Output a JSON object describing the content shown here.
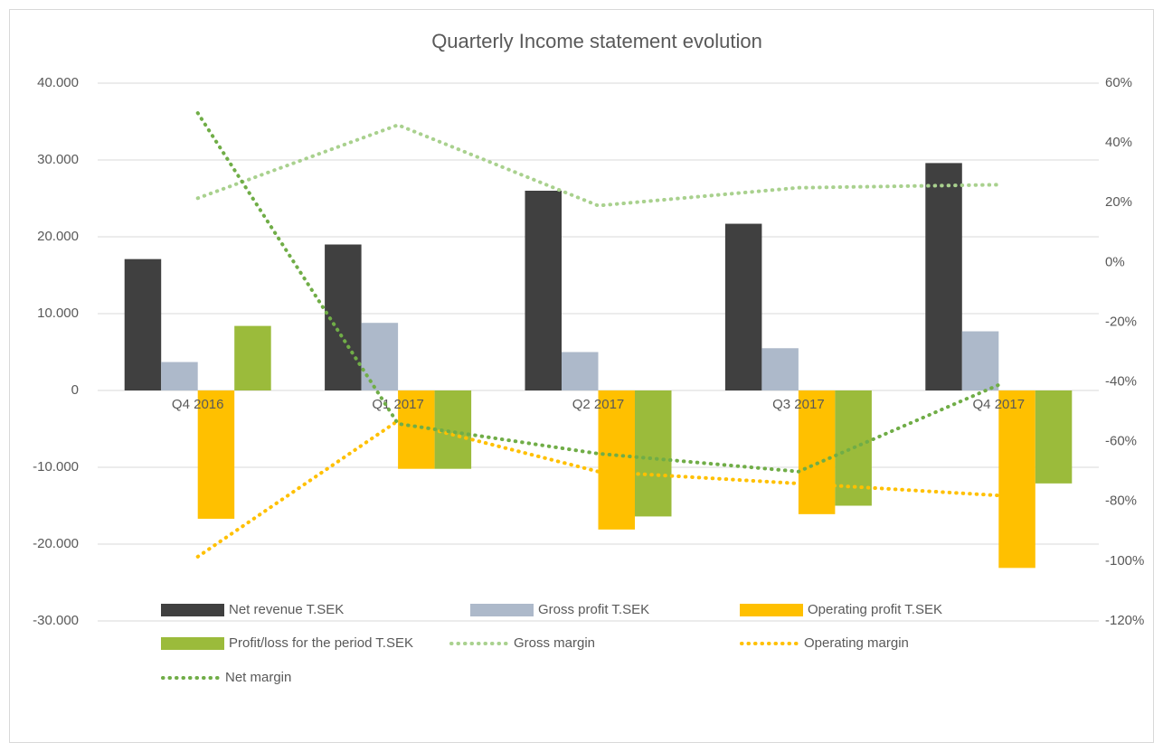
{
  "chart_data": {
    "type": "bar",
    "title": "Quarterly Income statement evolution",
    "categories": [
      "Q4 2016",
      "Q1 2017",
      "Q2 2017",
      "Q3 2017",
      "Q4 2017"
    ],
    "series": [
      {
        "name": "Net revenue T.SEK",
        "color": "#404040",
        "values": [
          17100,
          19000,
          26000,
          21700,
          29600
        ]
      },
      {
        "name": "Gross profit T.SEK",
        "color": "#adb9ca",
        "values": [
          3700,
          8800,
          5000,
          5500,
          7700
        ]
      },
      {
        "name": "Operating profit T.SEK",
        "color": "#ffc000",
        "values": [
          -16700,
          -10200,
          -18100,
          -16100,
          -23100
        ]
      },
      {
        "name": "Profit/loss for the period T.SEK",
        "color": "#9bbb3b",
        "values": [
          8400,
          -10200,
          -16400,
          -15000,
          -12100
        ]
      },
      {
        "name": "Gross margin",
        "color": "#a9d18e",
        "type": "line",
        "axis": "y2",
        "values": [
          21.5,
          46,
          19,
          25,
          26
        ]
      },
      {
        "name": "Operating margin",
        "color": "#ffc000",
        "type": "line",
        "axis": "y2",
        "values": [
          -98.5,
          -53,
          -70,
          -74,
          -78
        ]
      },
      {
        "name": "Net margin",
        "color": "#70ad47",
        "type": "line",
        "axis": "y2",
        "values": [
          50,
          -54,
          -64,
          -70,
          -41
        ]
      }
    ],
    "ylim": [
      -30000,
      40000
    ],
    "yticks": [
      {
        "value": -30000,
        "label": "-30.000"
      },
      {
        "value": -20000,
        "label": "-20.000"
      },
      {
        "value": -10000,
        "label": "-10.000"
      },
      0,
      {
        "value": 10000,
        "label": "10.000"
      },
      {
        "value": 20000,
        "label": "20.000"
      },
      {
        "value": 30000,
        "label": "30.000"
      },
      {
        "value": 40000,
        "label": "40.000"
      }
    ],
    "y2lim": [
      -120,
      60
    ],
    "y2ticks": [
      {
        "value": -120,
        "label": "-120%"
      },
      {
        "value": -100,
        "label": "-100%"
      },
      {
        "value": -80,
        "label": "-80%"
      },
      {
        "value": -60,
        "label": "-60%"
      },
      {
        "value": -40,
        "label": "-40%"
      },
      {
        "value": -20,
        "label": "-20%"
      },
      {
        "value": 0,
        "label": "0%"
      },
      {
        "value": 20,
        "label": "20%"
      },
      {
        "value": 40,
        "label": "40%"
      },
      {
        "value": 60,
        "label": "60%"
      }
    ],
    "grid": true,
    "legend": "bottom"
  }
}
